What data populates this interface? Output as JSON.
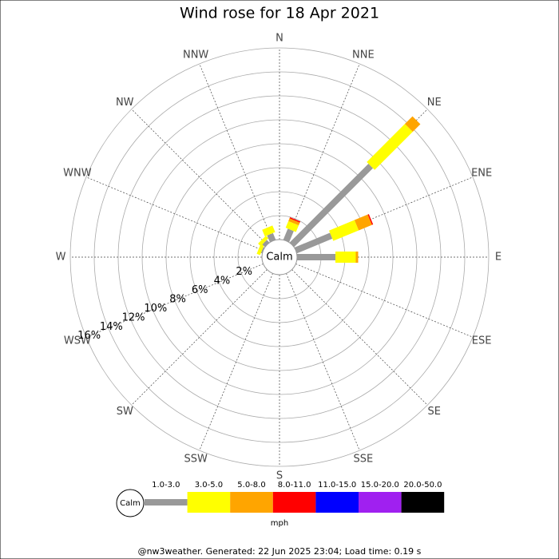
{
  "chart_data": {
    "type": "windrose",
    "title": "Wind rose for 18 Apr 2021",
    "directions": [
      "N",
      "NNE",
      "NE",
      "ENE",
      "E",
      "ESE",
      "SE",
      "SSE",
      "S",
      "SSW",
      "SW",
      "WSW",
      "W",
      "WNW",
      "NW",
      "NNW"
    ],
    "series": [
      {
        "name": "1.0-3.0",
        "color": "#999999",
        "values": [
          0,
          1.0,
          9.3,
          3.2,
          3.2,
          0,
          0,
          0,
          0,
          0,
          0,
          0,
          0,
          0.1,
          0.3,
          0.6
        ]
      },
      {
        "name": "3.0-5.0",
        "color": "#ffff00",
        "values": [
          0,
          0.6,
          4.5,
          2.3,
          1.7,
          0,
          0,
          0,
          0,
          0,
          0,
          0,
          0,
          0.3,
          0.3,
          0.6
        ]
      },
      {
        "name": "5.0-8.0",
        "color": "#ffa500",
        "values": [
          0,
          0.25,
          0.9,
          1.2,
          0.2,
          0,
          0,
          0,
          0,
          0,
          0,
          0,
          0,
          0,
          0,
          0
        ]
      },
      {
        "name": "8.0-11.0",
        "color": "#ff0000",
        "values": [
          0,
          0.1,
          0,
          0.1,
          0,
          0,
          0,
          0,
          0,
          0,
          0,
          0,
          0,
          0,
          0,
          0
        ]
      },
      {
        "name": "11.0-15.0",
        "color": "#0000ff",
        "values": [
          0,
          0,
          0,
          0,
          0,
          0,
          0,
          0,
          0,
          0,
          0,
          0,
          0,
          0,
          0,
          0
        ]
      },
      {
        "name": "15.0-20.0",
        "color": "#a020f0",
        "values": [
          0,
          0,
          0,
          0,
          0,
          0,
          0,
          0,
          0,
          0,
          0,
          0,
          0,
          0,
          0,
          0
        ]
      },
      {
        "name": "20.0-50.0",
        "color": "#000000",
        "values": [
          0,
          0,
          0,
          0,
          0,
          0,
          0,
          0,
          0,
          0,
          0,
          0,
          0,
          0,
          0,
          0
        ]
      }
    ],
    "rlim": [
      0,
      16
    ],
    "rticks": [
      {
        "value": 2,
        "label": "2%"
      },
      {
        "value": 4,
        "label": "4%"
      },
      {
        "value": 6,
        "label": "6%"
      },
      {
        "value": 8,
        "label": "8%"
      },
      {
        "value": 10,
        "label": "10%"
      },
      {
        "value": 12,
        "label": "12%"
      },
      {
        "value": 14,
        "label": "14%"
      },
      {
        "value": 16,
        "label": "16%"
      }
    ],
    "calm_label": "Calm",
    "units": "mph",
    "footer": "@nw3weather. Generated: 22 Jun 2025 23:04; Load time: 0.19 s"
  }
}
